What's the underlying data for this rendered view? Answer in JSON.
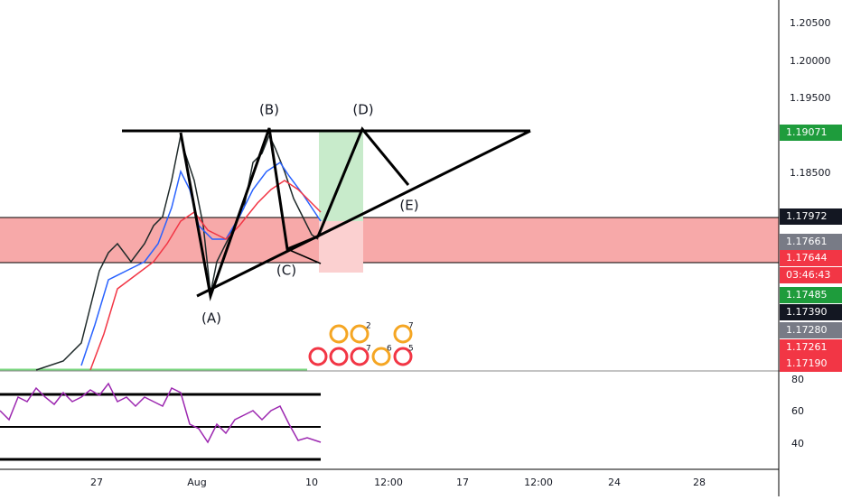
{
  "price_labels": [
    "1.20500",
    "1.20000",
    "1.19500",
    "1.18500"
  ],
  "price_tags": [
    {
      "text": "1.19071",
      "color": "#1e9c3c"
    },
    {
      "text": "1.17972",
      "color": "#131722"
    },
    {
      "text": "1.17661",
      "color": "#787b86"
    },
    {
      "text": "1.17644",
      "color": "#f23645"
    },
    {
      "text": "03:46:43",
      "color": "#f23645"
    },
    {
      "text": "1.17485",
      "color": "#1e9c3c"
    },
    {
      "text": "1.17390",
      "color": "#131722"
    },
    {
      "text": "1.17280",
      "color": "#787b86"
    },
    {
      "text": "1.17261",
      "color": "#f23645"
    },
    {
      "text": "1.17190",
      "color": "#f23645"
    }
  ],
  "rsi_labels": [
    "80",
    "60",
    "40"
  ],
  "time_labels": [
    "27",
    "Aug",
    "10",
    "12:00",
    "17",
    "12:00",
    "24",
    "28"
  ],
  "annotations": [
    "(A)",
    "(B)",
    "(C)",
    "(D)",
    "(E)"
  ],
  "event_counts": [
    "2",
    "7",
    "7",
    "6",
    "5"
  ]
}
